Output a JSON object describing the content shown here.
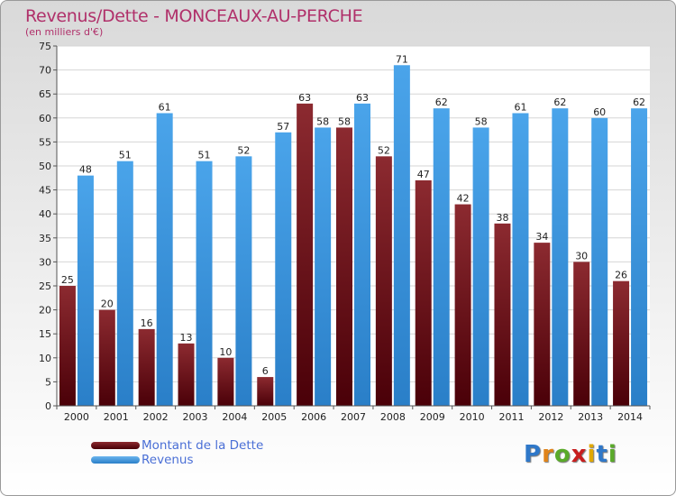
{
  "title": "Revenus/Dette - MONCEAUX-AU-PERCHE",
  "subtitle": "(en milliers d'€)",
  "colors": {
    "dette": "#7a1a1f",
    "revenus": "#3f95dd",
    "title": "#b0306a",
    "legend_text": "#4a6fd6"
  },
  "logo": {
    "text": "Proxiti",
    "letters": [
      "P",
      "r",
      "o",
      "x",
      "i",
      "t",
      "i"
    ],
    "letter_colors": [
      "#2f78c9",
      "#e0841a",
      "#5aaa2a",
      "#c81e1e",
      "#e0a800",
      "#2f78c9",
      "#5aaa2a"
    ]
  },
  "chart_data": {
    "type": "bar",
    "categories": [
      "2000",
      "2001",
      "2002",
      "2003",
      "2004",
      "2005",
      "2006",
      "2007",
      "2008",
      "2009",
      "2010",
      "2011",
      "2012",
      "2013",
      "2014"
    ],
    "series": [
      {
        "name": "Montant de la Dette",
        "values": [
          25,
          20,
          16,
          13,
          10,
          6,
          63,
          58,
          52,
          47,
          42,
          38,
          34,
          30,
          26
        ]
      },
      {
        "name": "Revenus",
        "values": [
          48,
          51,
          61,
          51,
          52,
          57,
          58,
          63,
          71,
          62,
          58,
          61,
          62,
          60,
          62
        ]
      }
    ],
    "ylim": [
      0,
      75
    ],
    "yticks": [
      0,
      5,
      10,
      15,
      20,
      25,
      30,
      35,
      40,
      45,
      50,
      55,
      60,
      65,
      70,
      75
    ],
    "grid": true,
    "legend_position": "bottom-left"
  }
}
